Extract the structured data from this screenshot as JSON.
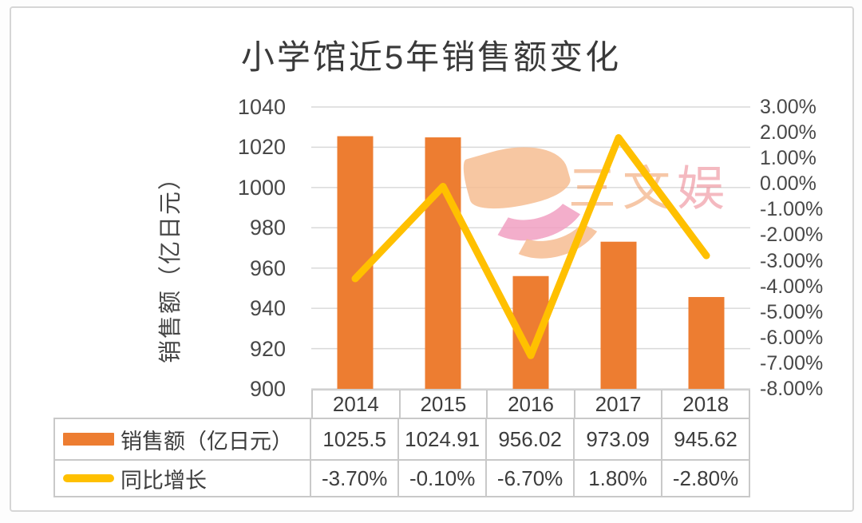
{
  "title": "小学馆近5年销售额变化",
  "watermark": {
    "char1": "三",
    "char2": "文",
    "char3": "娱"
  },
  "axes": {
    "left": {
      "title": "销售额（亿日元）",
      "ticks": [
        "1040",
        "1020",
        "1000",
        "980",
        "960",
        "940",
        "920",
        "900"
      ]
    },
    "right": {
      "ticks": [
        "3.00%",
        "2.00%",
        "1.00%",
        "0.00%",
        "-1.00%",
        "-2.00%",
        "-3.00%",
        "-4.00%",
        "-5.00%",
        "-6.00%",
        "-7.00%",
        "-8.00%"
      ]
    }
  },
  "chart_data": {
    "type": "combo",
    "title": "小学馆近5年销售额变化",
    "categories": [
      "2014",
      "2015",
      "2016",
      "2017",
      "2018"
    ],
    "series": [
      {
        "name": "销售额（亿日元）",
        "type": "bar",
        "axis": "left",
        "color": "#ED7D31",
        "values": [
          1025.5,
          1024.91,
          956.02,
          973.09,
          945.62
        ]
      },
      {
        "name": "同比增长",
        "type": "line",
        "axis": "right",
        "color": "#FFC000",
        "values": [
          -3.7,
          -0.1,
          -6.7,
          1.8,
          -2.8
        ]
      }
    ],
    "left_ylim": [
      900,
      1040
    ],
    "left_step": 20,
    "right_ylim": [
      -8,
      3
    ],
    "right_step": 1,
    "ylabel_left": "销售额（亿日元）",
    "grid": true,
    "grid_color": "#d9d9d9",
    "legend_position": "table-left"
  },
  "table": {
    "years": [
      "2014",
      "2015",
      "2016",
      "2017",
      "2018"
    ],
    "rows": [
      {
        "label": "销售额（亿日元）",
        "values": [
          "1025.5",
          "1024.91",
          "956.02",
          "973.09",
          "945.62"
        ]
      },
      {
        "label": "同比增长",
        "values": [
          "-3.70%",
          "-0.10%",
          "-6.70%",
          "1.80%",
          "-2.80%"
        ]
      }
    ]
  },
  "colors": {
    "bar": "#ED7D31",
    "line": "#FFC000",
    "grid": "#d9d9d9",
    "table_border": "#c9c9c9",
    "text": "#3d3d3d"
  }
}
